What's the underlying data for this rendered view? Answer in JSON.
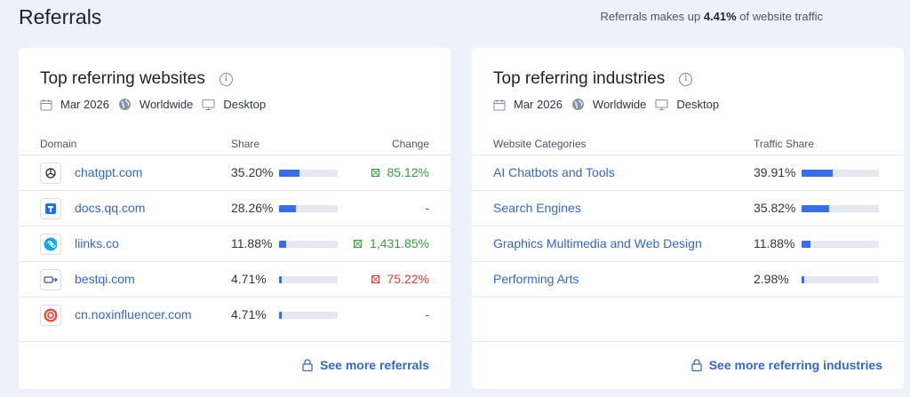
{
  "page": {
    "title": "Referrals",
    "traffic_note_prefix": "Referrals makes up ",
    "traffic_note_value": "4.41%",
    "traffic_note_suffix": " of website traffic"
  },
  "websites": {
    "title": "Top referring websites",
    "meta": {
      "date": "Mar 2026",
      "region": "Worldwide",
      "device": "Desktop"
    },
    "columns": {
      "domain": "Domain",
      "share": "Share",
      "change": "Change"
    },
    "rows": [
      {
        "domain": "chatgpt.com",
        "share": "35.20%",
        "share_pct": 35.2,
        "change": "85.12%",
        "direction": "up",
        "icon": "chatgpt-favicon"
      },
      {
        "domain": "docs.qq.com",
        "share": "28.26%",
        "share_pct": 28.26,
        "change": "-",
        "direction": "none",
        "icon": "tencent-docs-favicon"
      },
      {
        "domain": "liinks.co",
        "share": "11.88%",
        "share_pct": 11.88,
        "change": "1,431.85%",
        "direction": "up",
        "icon": "liinks-favicon"
      },
      {
        "domain": "bestqi.com",
        "share": "4.71%",
        "share_pct": 4.71,
        "change": "75.22%",
        "direction": "down",
        "icon": "bestqi-favicon"
      },
      {
        "domain": "cn.noxinfluencer.com",
        "share": "4.71%",
        "share_pct": 4.71,
        "change": "-",
        "direction": "none",
        "icon": "noxinfluencer-favicon"
      }
    ],
    "see_more": "See more referrals"
  },
  "industries": {
    "title": "Top referring industries",
    "meta": {
      "date": "Mar 2026",
      "region": "Worldwide",
      "device": "Desktop"
    },
    "columns": {
      "category": "Website Categories",
      "share": "Traffic Share"
    },
    "rows": [
      {
        "category": "AI Chatbots and Tools",
        "share": "39.91%",
        "share_pct": 39.91
      },
      {
        "category": "Search Engines",
        "share": "35.82%",
        "share_pct": 35.82
      },
      {
        "category": "Graphics Multimedia and Web Design",
        "share": "11.88%",
        "share_pct": 11.88
      },
      {
        "category": "Performing Arts",
        "share": "2.98%",
        "share_pct": 2.98
      }
    ],
    "see_more": "See more referring industries"
  },
  "colors": {
    "accent": "#3a6ee8",
    "link": "#3667c7",
    "up": "#3a9b3e",
    "down": "#d9402f"
  }
}
